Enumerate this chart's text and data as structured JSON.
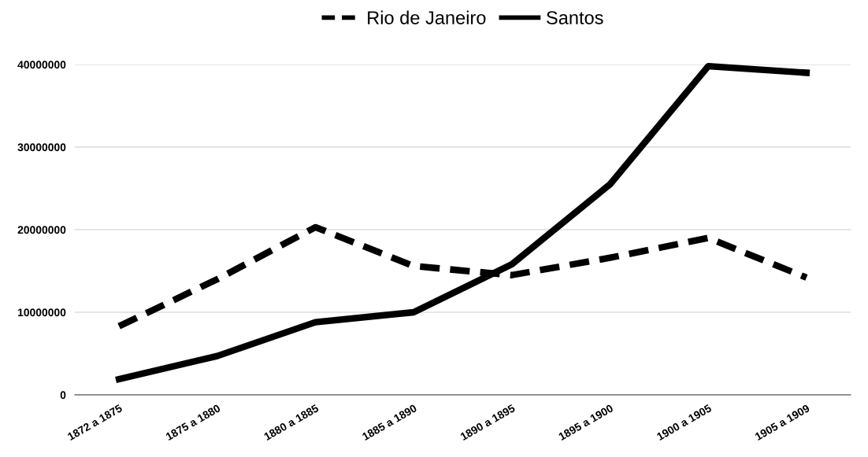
{
  "chart_data": {
    "type": "line",
    "categories": [
      "1872 a 1875",
      "1875 a 1880",
      "1880 a 1885",
      "1885 a 1890",
      "1890 a 1895",
      "1895 a 1900",
      "1900 a 1905",
      "1905 a 1909"
    ],
    "series": [
      {
        "name": "Rio de Janeiro",
        "color": "#000000",
        "line_style": "dashed",
        "values": [
          8300000,
          14000000,
          20300000,
          15600000,
          14500000,
          16600000,
          19000000,
          14200000
        ]
      },
      {
        "name": "Santos",
        "color": "#000000",
        "line_style": "solid",
        "values": [
          1900000,
          4700000,
          8800000,
          10000000,
          15800000,
          25500000,
          39800000,
          39000000
        ]
      }
    ],
    "ylim": [
      0,
      40000000
    ],
    "yticks": [
      0,
      10000000,
      20000000,
      30000000,
      40000000
    ],
    "grid": "y",
    "legend": "top",
    "marker": "none"
  }
}
